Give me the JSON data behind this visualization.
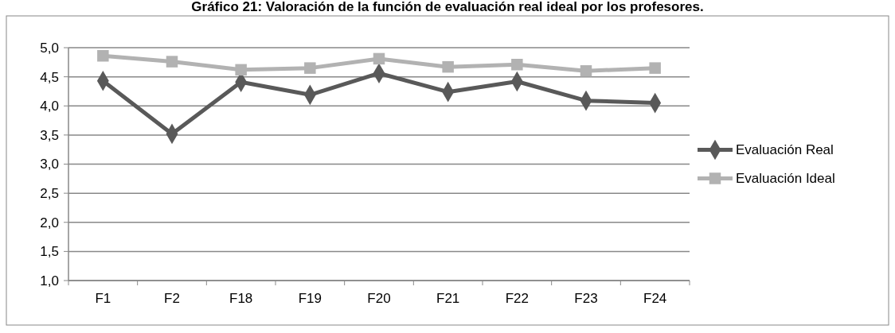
{
  "chart_data": {
    "type": "line",
    "title": "Gráfico  21: Valoración de la función de evaluación real ideal por los profesores.",
    "categories": [
      "F1",
      "F2",
      "F18",
      "F19",
      "F20",
      "F21",
      "F22",
      "F23",
      "F24"
    ],
    "series": [
      {
        "name": "Evaluación Real",
        "color": "#595959",
        "marker": "diamond",
        "values": [
          4.43,
          3.52,
          4.41,
          4.19,
          4.56,
          4.24,
          4.42,
          4.09,
          4.05
        ]
      },
      {
        "name": "Evaluación Ideal",
        "color": "#b2b2b2",
        "marker": "square",
        "values": [
          4.86,
          4.76,
          4.62,
          4.65,
          4.81,
          4.67,
          4.71,
          4.6,
          4.65
        ]
      }
    ],
    "ylim": [
      1,
      5
    ],
    "yticks": [
      {
        "value": 1,
        "label": "1,0"
      },
      {
        "value": 1.5,
        "label": "1,5"
      },
      {
        "value": 2,
        "label": "2,0"
      },
      {
        "value": 2.5,
        "label": "2,5"
      },
      {
        "value": 3,
        "label": "3,0"
      },
      {
        "value": 3.5,
        "label": "3,5"
      },
      {
        "value": 4,
        "label": "4,0"
      },
      {
        "value": 4.5,
        "label": "4,5"
      },
      {
        "value": 5,
        "label": "5,0"
      }
    ],
    "grid": "y",
    "legend": "right"
  }
}
